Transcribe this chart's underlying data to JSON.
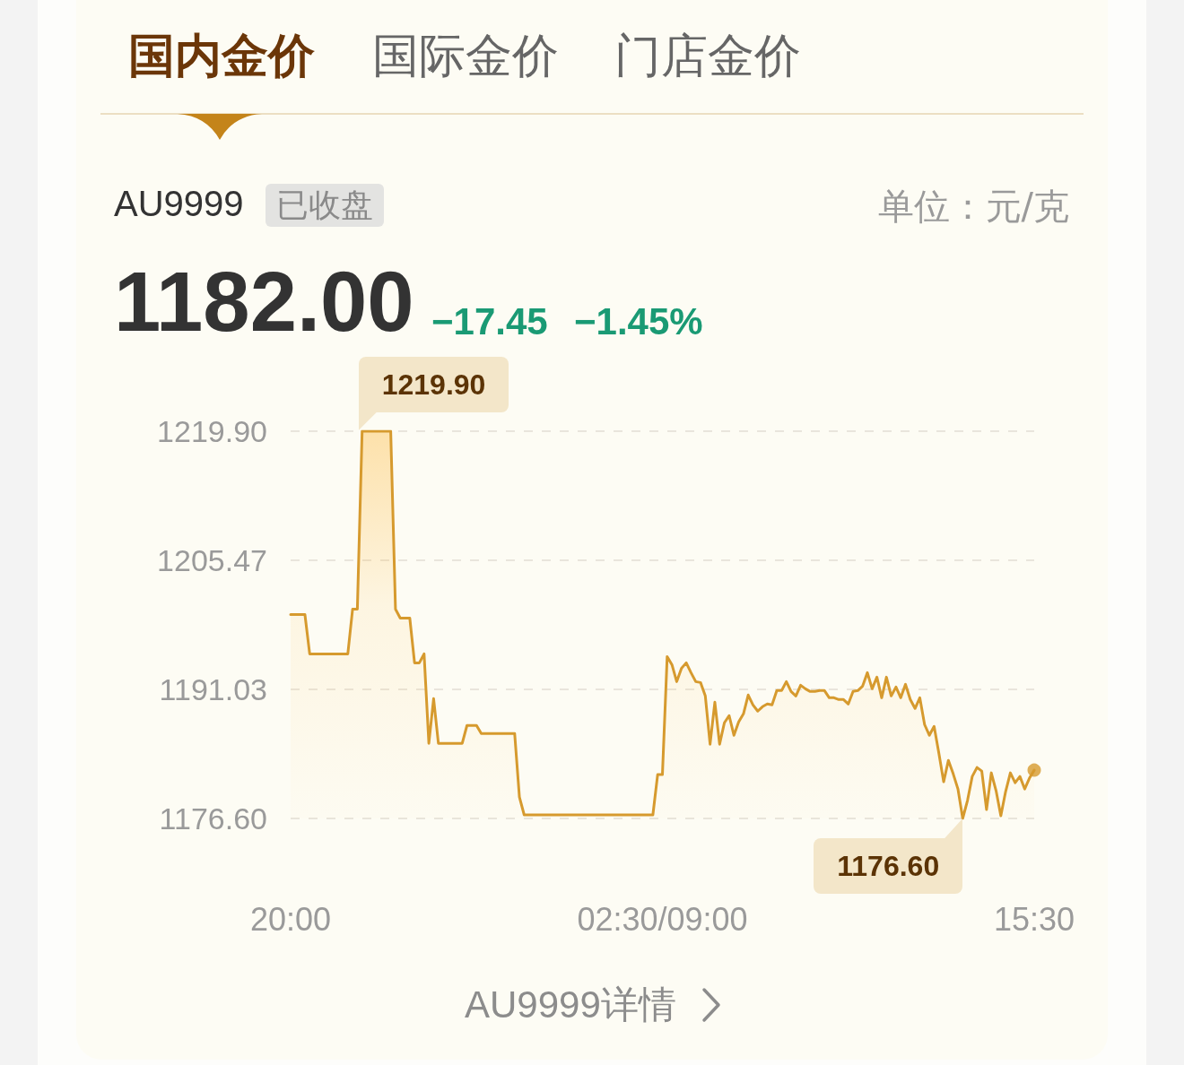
{
  "chart_data": {
    "type": "area",
    "title": "AU9999",
    "annotations": [
      "国内金价",
      "国际金价",
      "门店金价",
      "已收盘",
      "单位：元/克",
      "1182.00",
      "−17.45",
      "−1.45%",
      "1219.90",
      "1176.60",
      "AU9999详情"
    ],
    "categories": [
      "20:00",
      null,
      null,
      null,
      null,
      null,
      null,
      null,
      null,
      null,
      null,
      null,
      null,
      null,
      null,
      null,
      null,
      null,
      null,
      null,
      null,
      null,
      null,
      null,
      null,
      null,
      null,
      null,
      null,
      null,
      null,
      null,
      null,
      null,
      null,
      null,
      null,
      null,
      null,
      null,
      null,
      null,
      null,
      null,
      null,
      null,
      null,
      null,
      null,
      null,
      null,
      null,
      null,
      null,
      null,
      null,
      null,
      null,
      null,
      null,
      null,
      null,
      null,
      null,
      null,
      null,
      null,
      null,
      null,
      null,
      null,
      null,
      null,
      null,
      null,
      null,
      null,
      null,
      "02:30/09:00",
      null,
      null,
      null,
      null,
      null,
      null,
      null,
      null,
      null,
      null,
      null,
      null,
      null,
      null,
      null,
      null,
      null,
      null,
      null,
      null,
      null,
      null,
      null,
      null,
      null,
      null,
      null,
      null,
      null,
      null,
      null,
      null,
      null,
      null,
      null,
      null,
      null,
      null,
      null,
      null,
      null,
      null,
      null,
      null,
      null,
      null,
      null,
      null,
      null,
      null,
      null,
      null,
      null,
      null,
      null,
      null,
      null,
      null,
      null,
      null,
      null,
      null,
      null,
      null,
      null,
      null,
      null,
      null,
      null,
      null,
      null,
      null,
      null,
      null,
      null,
      null,
      null,
      "15:30"
    ],
    "series": [
      {
        "color": "#d69a2e",
        "values": [
          1199.4,
          1199.4,
          1199.4,
          1199.4,
          1195.0,
          1195.0,
          1195.0,
          1195.0,
          1195.0,
          1195.0,
          1195.0,
          1195.0,
          1195.0,
          1200.0,
          1200.0,
          1219.9,
          1219.9,
          1219.9,
          1219.9,
          1219.9,
          1219.9,
          1219.9,
          1200.0,
          1199.0,
          1199.0,
          1199.0,
          1194.0,
          1194.0,
          1195.0,
          1185.0,
          1190.0,
          1185.0,
          1185.0,
          1185.0,
          1185.0,
          1185.0,
          1185.0,
          1187.0,
          1187.0,
          1187.0,
          1186.1,
          1186.1,
          1186.1,
          1186.1,
          1186.1,
          1186.1,
          1186.1,
          1186.1,
          1179.0,
          1177.0,
          1177.0,
          1177.0,
          1177.0,
          1177.0,
          1177.0,
          1177.0,
          1177.0,
          1177.0,
          1177.0,
          1177.0,
          1177.0,
          1177.0,
          1177.0,
          1177.0,
          1177.0,
          1177.0,
          1177.0,
          1177.0,
          1177.0,
          1177.0,
          1177.0,
          1177.0,
          1177.0,
          1177.0,
          1177.0,
          1177.0,
          1177.0,
          1181.5,
          1181.5,
          1194.7,
          1193.8,
          1191.9,
          1193.4,
          1194.0,
          1192.9,
          1191.9,
          1191.8,
          1190.3,
          1184.9,
          1189.6,
          1184.9,
          1187.3,
          1188.1,
          1185.9,
          1187.4,
          1188.3,
          1190.4,
          1189.3,
          1188.6,
          1189.1,
          1189.4,
          1189.3,
          1190.9,
          1190.9,
          1191.9,
          1190.8,
          1190.3,
          1191.5,
          1191.1,
          1190.8,
          1190.8,
          1190.9,
          1190.9,
          1190.1,
          1190.1,
          1189.9,
          1189.9,
          1189.4,
          1190.8,
          1190.9,
          1191.4,
          1192.9,
          1191.1,
          1192.4,
          1190.1,
          1192.4,
          1190.3,
          1191.3,
          1190.1,
          1191.6,
          1189.9,
          1188.9,
          1190.1,
          1187.1,
          1185.9,
          1186.9,
          1183.9,
          1180.7,
          1183.1,
          1181.6,
          1179.9,
          1176.6,
          1178.6,
          1181.3,
          1182.3,
          1181.9,
          1177.6,
          1181.7,
          1179.7,
          1176.9,
          1179.6,
          1181.7,
          1180.6,
          1181.3,
          1179.9,
          1181.1,
          1182.0
        ]
      },
      {
        "type": "scatter",
        "color": "#d69a2e",
        "values": [
          null,
          null,
          null,
          null,
          null,
          null,
          null,
          null,
          null,
          null,
          null,
          null,
          null,
          null,
          null,
          null,
          null,
          null,
          null,
          null,
          null,
          null,
          null,
          null,
          null,
          null,
          null,
          null,
          null,
          null,
          null,
          null,
          null,
          null,
          null,
          null,
          null,
          null,
          null,
          null,
          null,
          null,
          null,
          null,
          null,
          null,
          null,
          null,
          null,
          null,
          null,
          null,
          null,
          null,
          null,
          null,
          null,
          null,
          null,
          null,
          null,
          null,
          null,
          null,
          null,
          null,
          null,
          null,
          null,
          null,
          null,
          null,
          null,
          null,
          null,
          null,
          null,
          null,
          null,
          null,
          null,
          null,
          null,
          null,
          null,
          null,
          null,
          null,
          null,
          null,
          null,
          null,
          null,
          null,
          null,
          null,
          null,
          null,
          null,
          null,
          null,
          null,
          null,
          null,
          null,
          null,
          null,
          null,
          null,
          null,
          null,
          null,
          null,
          null,
          null,
          null,
          null,
          null,
          null,
          null,
          null,
          null,
          null,
          null,
          null,
          null,
          null,
          null,
          null,
          null,
          null,
          null,
          null,
          null,
          null,
          null,
          null,
          null,
          null,
          null,
          null,
          null,
          null,
          null,
          null,
          null,
          null,
          null,
          null,
          null,
          null,
          null,
          null,
          null,
          null,
          null,
          1182.0
        ]
      }
    ],
    "ylim": [
      1176.6,
      1219.9
    ],
    "yticks": [
      {
        "value": 1176.6,
        "label": "1176.60"
      },
      {
        "value": 1191.03,
        "label": "1191.03"
      },
      {
        "value": 1205.47,
        "label": "1205.47"
      },
      {
        "value": 1219.9,
        "label": "1219.90"
      }
    ],
    "grid": "y"
  }
}
